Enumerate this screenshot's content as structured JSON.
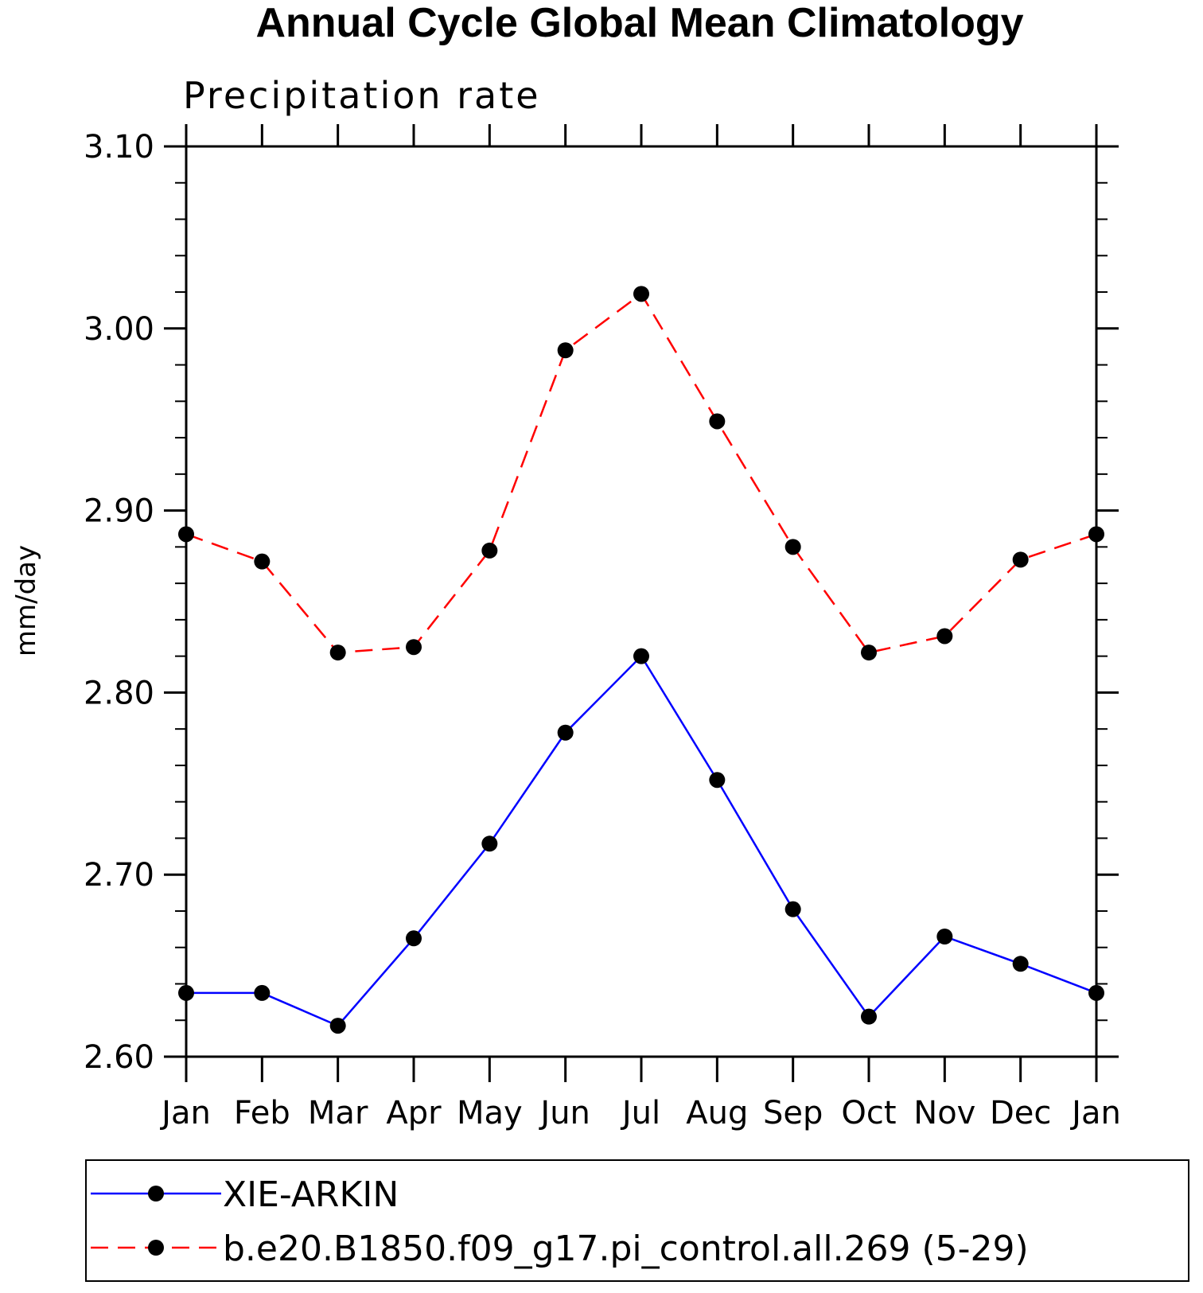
{
  "chart_data": {
    "type": "line",
    "title": "Annual Cycle Global Mean Climatology",
    "subtitle": "Precipitation rate",
    "xlabel": "",
    "ylabel": "mm/day",
    "categories": [
      "Jan",
      "Feb",
      "Mar",
      "Apr",
      "May",
      "Jun",
      "Jul",
      "Aug",
      "Sep",
      "Oct",
      "Nov",
      "Dec",
      "Jan"
    ],
    "ylim": [
      2.6,
      3.1
    ],
    "yticks": [
      "2.60",
      "2.70",
      "2.80",
      "2.90",
      "3.00",
      "3.10"
    ],
    "grid": false,
    "legend_position": "bottom",
    "series": [
      {
        "name": "XIE-ARKIN",
        "color": "#0000ff",
        "line_style": "solid",
        "marker": "filled-circle",
        "values": [
          2.635,
          2.635,
          2.617,
          2.665,
          2.717,
          2.778,
          2.82,
          2.752,
          2.681,
          2.622,
          2.666,
          2.651,
          2.635
        ]
      },
      {
        "name": "b.e20.B1850.f09_g17.pi_control.all.269 (5-29)",
        "color": "#ff0000",
        "line_style": "dashed",
        "marker": "filled-circle",
        "values": [
          2.887,
          2.872,
          2.822,
          2.825,
          2.878,
          2.988,
          3.019,
          2.949,
          2.88,
          2.822,
          2.831,
          2.873,
          2.887
        ]
      }
    ]
  }
}
